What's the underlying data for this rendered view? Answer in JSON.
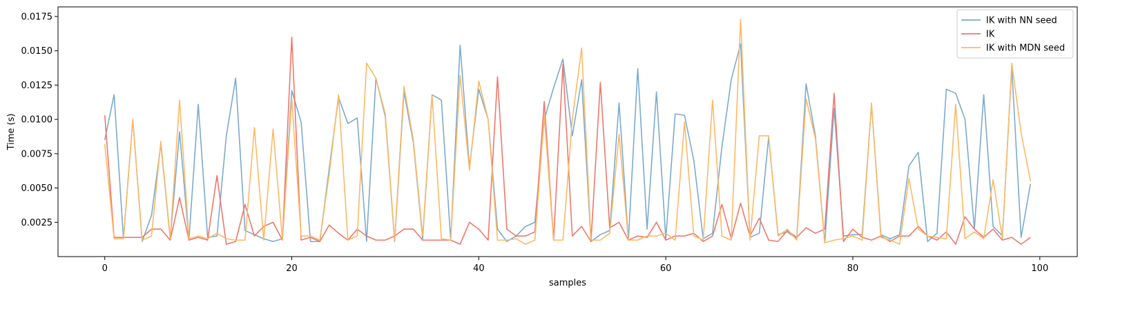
{
  "chart_data": {
    "type": "line",
    "title": "",
    "xlabel": "samples",
    "ylabel": "Time (s)",
    "xlim": [
      -5,
      104
    ],
    "ylim": [
      0.0,
      0.0182
    ],
    "xticks": [
      0,
      20,
      40,
      60,
      80,
      100
    ],
    "xtick_labels": [
      "0",
      "20",
      "40",
      "60",
      "80",
      "100"
    ],
    "yticks": [
      0.0025,
      0.005,
      0.0075,
      0.01,
      0.0125,
      0.015,
      0.0175
    ],
    "ytick_labels": [
      "0.0025",
      "0.0050",
      "0.0075",
      "0.0100",
      "0.0125",
      "0.0150",
      "0.0175"
    ],
    "grid": false,
    "legend": "top-right",
    "x": [
      0,
      1,
      2,
      3,
      4,
      5,
      6,
      7,
      8,
      9,
      10,
      11,
      12,
      13,
      14,
      15,
      16,
      17,
      18,
      19,
      20,
      21,
      22,
      23,
      24,
      25,
      26,
      27,
      28,
      29,
      30,
      31,
      32,
      33,
      34,
      35,
      36,
      37,
      38,
      39,
      40,
      41,
      42,
      43,
      44,
      45,
      46,
      47,
      48,
      49,
      50,
      51,
      52,
      53,
      54,
      55,
      56,
      57,
      58,
      59,
      60,
      61,
      62,
      63,
      64,
      65,
      66,
      67,
      68,
      69,
      70,
      71,
      72,
      73,
      74,
      75,
      76,
      77,
      78,
      79,
      80,
      81,
      82,
      83,
      84,
      85,
      86,
      87,
      88,
      89,
      90,
      91,
      92,
      93,
      94,
      95,
      96,
      97,
      98,
      99
    ],
    "series": [
      {
        "name": "IK with NN seed",
        "color": "#7aaacf",
        "values": [
          0.0085,
          0.0118,
          0.0013,
          0.01,
          0.0011,
          0.003,
          0.0082,
          0.0013,
          0.0091,
          0.0012,
          0.0111,
          0.0014,
          0.0015,
          0.0088,
          0.013,
          0.0019,
          0.0016,
          0.0013,
          0.0011,
          0.0013,
          0.0121,
          0.0098,
          0.0011,
          0.0011,
          0.0064,
          0.0116,
          0.0097,
          0.0101,
          0.0011,
          0.013,
          0.0102,
          0.0011,
          0.012,
          0.0083,
          0.0013,
          0.0118,
          0.0114,
          0.0012,
          0.0154,
          0.0065,
          0.0122,
          0.01,
          0.002,
          0.0011,
          0.0015,
          0.0022,
          0.0025,
          0.01,
          0.0123,
          0.0144,
          0.0088,
          0.0129,
          0.0011,
          0.0016,
          0.0019,
          0.0112,
          0.0012,
          0.0137,
          0.002,
          0.012,
          0.0013,
          0.0104,
          0.0103,
          0.007,
          0.0013,
          0.0017,
          0.008,
          0.0129,
          0.0155,
          0.0014,
          0.0017,
          0.0087,
          0.0016,
          0.0018,
          0.0013,
          0.0126,
          0.0088,
          0.001,
          0.0108,
          0.0015,
          0.0016,
          0.0016,
          0.0111,
          0.0016,
          0.0013,
          0.0016,
          0.0066,
          0.0076,
          0.0011,
          0.0017,
          0.0122,
          0.0119,
          0.01,
          0.002,
          0.0118,
          0.0022,
          0.0015,
          0.0138,
          0.0014,
          0.0053
        ]
      },
      {
        "name": "IK",
        "color": "#f0766a",
        "values": [
          0.0103,
          0.0014,
          0.0014,
          0.0014,
          0.0014,
          0.002,
          0.002,
          0.0012,
          0.0043,
          0.0012,
          0.0014,
          0.0012,
          0.0059,
          0.0009,
          0.0011,
          0.0038,
          0.0015,
          0.0022,
          0.0025,
          0.0012,
          0.016,
          0.0012,
          0.0014,
          0.0011,
          0.0023,
          0.0017,
          0.0012,
          0.002,
          0.0015,
          0.0012,
          0.0012,
          0.0015,
          0.002,
          0.002,
          0.0012,
          0.0012,
          0.0012,
          0.0012,
          0.0009,
          0.0025,
          0.002,
          0.0012,
          0.0131,
          0.002,
          0.0015,
          0.0015,
          0.0018,
          0.0113,
          0.0012,
          0.014,
          0.0015,
          0.0022,
          0.0011,
          0.0127,
          0.0021,
          0.0025,
          0.0012,
          0.0015,
          0.0014,
          0.0025,
          0.0012,
          0.0015,
          0.0015,
          0.0017,
          0.0011,
          0.0015,
          0.0038,
          0.0013,
          0.0039,
          0.0015,
          0.0028,
          0.0012,
          0.0011,
          0.0019,
          0.0014,
          0.0021,
          0.0017,
          0.002,
          0.0119,
          0.0011,
          0.002,
          0.0014,
          0.0012,
          0.0015,
          0.0011,
          0.0015,
          0.0015,
          0.0022,
          0.0015,
          0.0012,
          0.0018,
          0.0009,
          0.0029,
          0.002,
          0.0014,
          0.002,
          0.0012,
          0.0014,
          0.0009,
          0.0014
        ]
      },
      {
        "name": "IK with MDN seed",
        "color": "#fdb863",
        "values": [
          0.0082,
          0.0013,
          0.0013,
          0.01,
          0.0012,
          0.0015,
          0.0084,
          0.0013,
          0.0114,
          0.0013,
          0.0015,
          0.0013,
          0.0017,
          0.0013,
          0.0012,
          0.0012,
          0.0094,
          0.0012,
          0.0093,
          0.0012,
          0.0115,
          0.0015,
          0.0015,
          0.0012,
          0.006,
          0.0118,
          0.0012,
          0.0015,
          0.0141,
          0.013,
          0.0104,
          0.0012,
          0.0124,
          0.0085,
          0.0015,
          0.0118,
          0.0013,
          0.0012,
          0.0132,
          0.0063,
          0.0128,
          0.01,
          0.0012,
          0.0012,
          0.0013,
          0.0009,
          0.0012,
          0.0103,
          0.0012,
          0.0012,
          0.01,
          0.0152,
          0.0012,
          0.0012,
          0.0017,
          0.0089,
          0.0012,
          0.0012,
          0.0015,
          0.0015,
          0.0017,
          0.0012,
          0.0098,
          0.0015,
          0.0012,
          0.0114,
          0.0015,
          0.0012,
          0.0173,
          0.0012,
          0.0088,
          0.0088,
          0.0015,
          0.002,
          0.0012,
          0.0115,
          0.0086,
          0.001,
          0.0012,
          0.0013,
          0.0015,
          0.0012,
          0.0112,
          0.0014,
          0.0012,
          0.0009,
          0.0057,
          0.002,
          0.0015,
          0.0014,
          0.0013,
          0.0111,
          0.0013,
          0.0018,
          0.0013,
          0.0056,
          0.0013,
          0.0141,
          0.009,
          0.0055
        ]
      }
    ]
  }
}
